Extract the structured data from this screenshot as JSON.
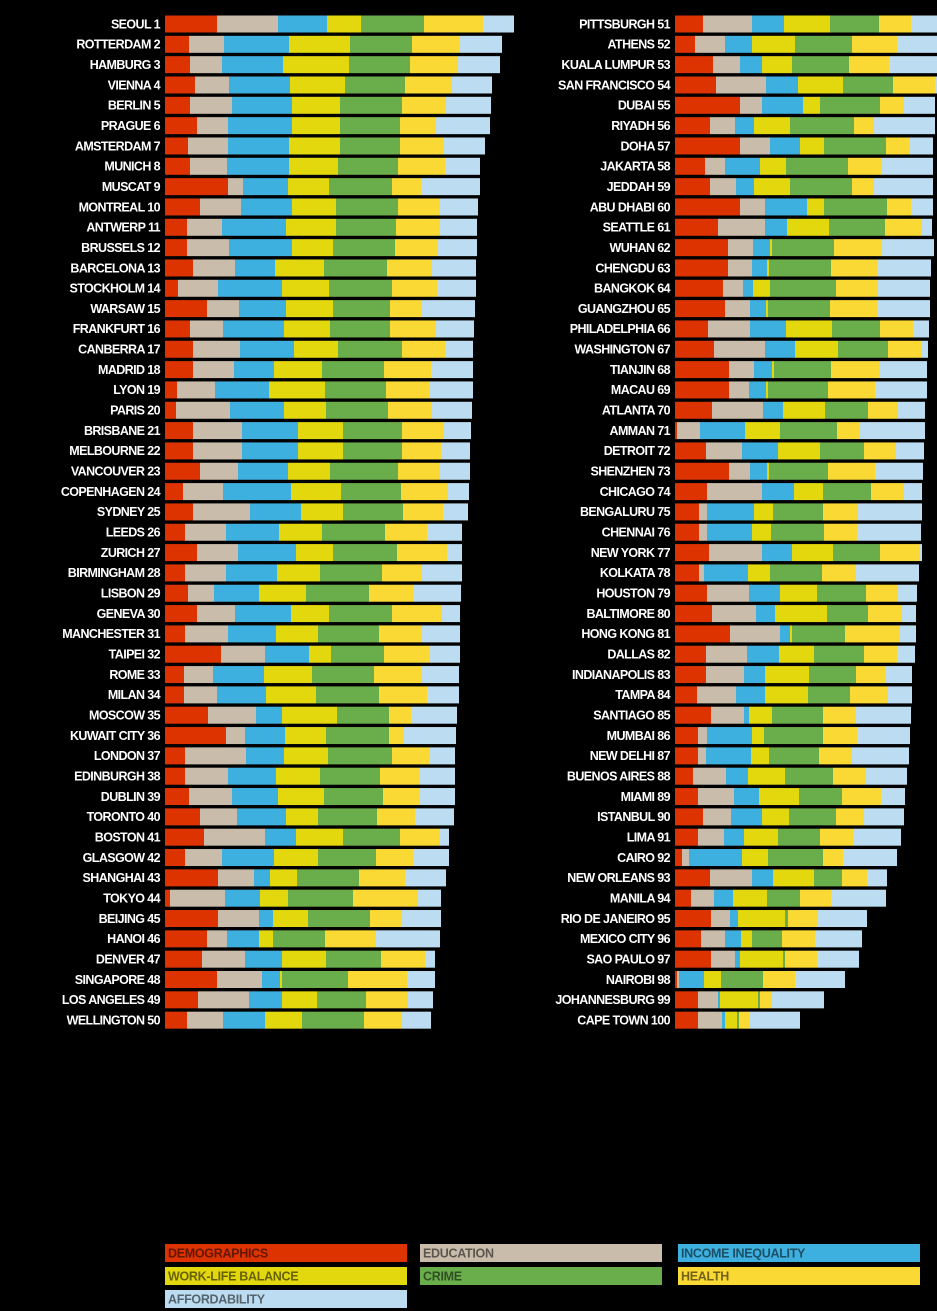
{
  "chart_data": {
    "type": "stacked_hbar",
    "categories": [
      "SEOUL 1",
      "ROTTERDAM 2",
      "HAMBURG 3",
      "VIENNA 4",
      "BERLIN 5",
      "PRAGUE 6",
      "AMSTERDAM 7",
      "MUNICH 8",
      "MUSCAT 9",
      "MONTREAL 10",
      "ANTWERP 11",
      "BRUSSELS 12",
      "BARCELONA 13",
      "STOCKHOLM 14",
      "WARSAW 15",
      "FRANKFURT 16",
      "CANBERRA 17",
      "MADRID 18",
      "LYON 19",
      "PARIS 20",
      "BRISBANE 21",
      "MELBOURNE 22",
      "VANCOUVER 23",
      "COPENHAGEN 24",
      "SYDNEY 25",
      "LEEDS 26",
      "ZURICH 27",
      "BIRMINGHAM 28",
      "LISBON 29",
      "GENEVA 30",
      "MANCHESTER 31",
      "TAIPEI 32",
      "ROME 33",
      "MILAN 34",
      "MOSCOW 35",
      "KUWAIT CITY 36",
      "LONDON 37",
      "EDINBURGH 38",
      "DUBLIN 39",
      "TORONTO 40",
      "BOSTON 41",
      "GLASGOW 42",
      "SHANGHAI 43",
      "TOKYO 44",
      "BEIJING 45",
      "HANOI 46",
      "DENVER 47",
      "SINGAPORE 48",
      "LOS ANGELES 49",
      "WELLINGTON 50",
      "PITTSBURGH 51",
      "ATHENS 52",
      "KUALA LUMPUR 53",
      "SAN FRANCISCO 54",
      "DUBAI 55",
      "RIYADH 56",
      "DOHA 57",
      "JAKARTA 58",
      "JEDDAH 59",
      "ABU DHABI 60",
      "SEATTLE 61",
      "WUHAN 62",
      "CHENGDU 63",
      "BANGKOK 64",
      "GUANGZHOU 65",
      "PHILADELPHIA 66",
      "WASHINGTON 67",
      "TIANJIN 68",
      "MACAU 69",
      "ATLANTA 70",
      "AMMAN 71",
      "DETROIT 72",
      "SHENZHEN 73",
      "CHICAGO 74",
      "BENGALURU 75",
      "CHENNAI 76",
      "NEW YORK 77",
      "KOLKATA 78",
      "HOUSTON 79",
      "BALTIMORE 80",
      "HONG KONG 81",
      "DALLAS 82",
      "INDIANAPOLIS 83",
      "TAMPA 84",
      "SANTIAGO 85",
      "MUMBAI 86",
      "NEW DELHI 87",
      "BUENOS AIRES 88",
      "MIAMI 89",
      "ISTANBUL 90",
      "LIMA 91",
      "CAIRO 92",
      "NEW ORLEANS 93",
      "MANILA 94",
      "RIO DE JANEIRO 95",
      "MEXICO CITY 96",
      "SAO PAULO 97",
      "NAIROBI 98",
      "JOHANNESBURG 99",
      "CAPE TOWN 100"
    ],
    "series": [
      {
        "name": "DEMOGRAPHICS",
        "color": "#dd3300",
        "values": [
          52,
          24,
          25,
          30,
          25,
          32,
          23,
          25,
          63,
          35,
          22,
          22,
          28,
          13,
          42,
          25,
          28,
          28,
          12,
          11,
          28,
          28,
          35,
          18,
          28,
          20,
          32,
          20,
          23,
          32,
          20,
          56,
          19,
          19,
          43,
          61,
          20,
          20,
          24,
          35,
          39,
          20,
          53,
          5,
          53,
          42,
          37,
          52,
          33,
          22,
          28,
          20,
          38,
          41,
          65,
          35,
          65,
          30,
          35,
          65,
          43,
          53,
          53,
          48,
          50,
          33,
          39,
          54,
          54,
          37,
          2,
          31,
          54,
          32,
          24,
          24,
          34,
          24,
          32,
          37,
          55,
          31,
          31,
          22,
          36,
          23,
          23,
          18,
          23,
          28,
          23,
          7,
          35,
          16,
          36,
          26,
          36,
          2,
          23,
          23
        ]
      },
      {
        "name": "EDUCATION",
        "color": "#c9bcaa",
        "values": [
          61,
          35,
          32,
          34,
          42,
          31,
          40,
          37,
          15,
          41,
          35,
          42,
          42,
          40,
          32,
          33,
          47,
          41,
          38,
          54,
          49,
          49,
          38,
          40,
          57,
          41,
          41,
          41,
          26,
          38,
          43,
          44,
          29,
          33,
          48,
          19,
          61,
          43,
          43,
          37,
          61,
          37,
          36,
          55,
          41,
          20,
          43,
          45,
          51,
          36,
          49,
          30,
          27,
          50,
          22,
          25,
          30,
          20,
          26,
          25,
          47,
          25,
          24,
          20,
          25,
          42,
          51,
          25,
          20,
          51,
          23,
          36,
          21,
          55,
          8,
          8,
          53,
          5,
          42,
          44,
          50,
          41,
          38,
          39,
          33,
          9,
          8,
          33,
          36,
          28,
          26,
          7,
          42,
          23,
          19,
          24,
          24,
          2,
          20,
          24
        ]
      },
      {
        "name": "INCOME INEQUALITY",
        "color": "#3eb0e0",
        "values": [
          49,
          65,
          61,
          61,
          60,
          64,
          61,
          62,
          45,
          51,
          64,
          63,
          40,
          64,
          47,
          61,
          54,
          40,
          54,
          54,
          56,
          56,
          50,
          68,
          51,
          53,
          58,
          51,
          45,
          56,
          48,
          44,
          51,
          49,
          26,
          40,
          38,
          48,
          46,
          49,
          31,
          52,
          16,
          35,
          14,
          32,
          37,
          18,
          33,
          42,
          32,
          27,
          22,
          32,
          41,
          19,
          30,
          35,
          18,
          42,
          22,
          17,
          15,
          10,
          16,
          36,
          30,
          18,
          17,
          20,
          45,
          36,
          17,
          32,
          47,
          45,
          30,
          44,
          31,
          19,
          10,
          32,
          21,
          29,
          5,
          45,
          45,
          22,
          25,
          31,
          20,
          53,
          21,
          19,
          8,
          16,
          5,
          25,
          2,
          3
        ]
      },
      {
        "name": "WORK-LIFE BALANCE",
        "color": "#e3d70d",
        "values": [
          34,
          61,
          66,
          55,
          48,
          48,
          51,
          49,
          41,
          44,
          50,
          41,
          49,
          47,
          47,
          46,
          44,
          48,
          56,
          42,
          45,
          45,
          42,
          50,
          42,
          43,
          37,
          43,
          47,
          38,
          42,
          22,
          48,
          50,
          55,
          41,
          44,
          44,
          46,
          32,
          47,
          44,
          27,
          28,
          35,
          14,
          44,
          2,
          35,
          37,
          46,
          43,
          30,
          45,
          17,
          36,
          24,
          26,
          36,
          17,
          42,
          2,
          2,
          17,
          2,
          46,
          43,
          2,
          2,
          42,
          35,
          42,
          2,
          29,
          19,
          19,
          41,
          22,
          37,
          52,
          2,
          35,
          44,
          43,
          23,
          12,
          18,
          37,
          40,
          27,
          34,
          26,
          41,
          34,
          47,
          11,
          43,
          17,
          38,
          12
        ]
      },
      {
        "name": "CRIME",
        "color": "#6aae4b",
        "values": [
          63,
          62,
          61,
          60,
          62,
          60,
          60,
          60,
          63,
          62,
          60,
          62,
          63,
          63,
          57,
          60,
          64,
          62,
          61,
          62,
          59,
          59,
          68,
          60,
          60,
          63,
          64,
          62,
          63,
          63,
          61,
          53,
          62,
          63,
          52,
          63,
          64,
          60,
          59,
          59,
          57,
          58,
          62,
          65,
          62,
          52,
          55,
          66,
          49,
          62,
          49,
          57,
          57,
          50,
          60,
          64,
          62,
          62,
          62,
          63,
          56,
          62,
          62,
          66,
          62,
          48,
          50,
          57,
          60,
          43,
          57,
          44,
          59,
          48,
          50,
          53,
          47,
          52,
          49,
          41,
          53,
          50,
          47,
          42,
          51,
          59,
          50,
          48,
          43,
          47,
          42,
          55,
          28,
          33,
          3,
          30,
          2,
          42,
          2,
          2
        ]
      },
      {
        "name": "HEALTH",
        "color": "#fbd934",
        "values": [
          59,
          48,
          48,
          47,
          44,
          36,
          44,
          47,
          29,
          42,
          44,
          43,
          45,
          45,
          32,
          46,
          43,
          47,
          44,
          44,
          42,
          39,
          42,
          47,
          40,
          42,
          50,
          40,
          44,
          50,
          43,
          46,
          48,
          48,
          22,
          15,
          38,
          40,
          37,
          38,
          40,
          37,
          46,
          65,
          32,
          51,
          44,
          59,
          42,
          38,
          32,
          45,
          40,
          42,
          24,
          20,
          24,
          34,
          22,
          24,
          37,
          48,
          46,
          42,
          47,
          33,
          34,
          49,
          47,
          30,
          23,
          32,
          47,
          33,
          35,
          33,
          40,
          34,
          32,
          34,
          55,
          33,
          30,
          38,
          33,
          34,
          33,
          33,
          39,
          28,
          33,
          20,
          25,
          31,
          30,
          33,
          32,
          32,
          12,
          11
        ]
      },
      {
        "name": "AFFORDABILITY",
        "color": "#bcdcf1",
        "values": [
          31,
          42,
          42,
          40,
          45,
          54,
          41,
          35,
          59,
          38,
          37,
          39,
          44,
          39,
          53,
          38,
          28,
          42,
          43,
          40,
          27,
          29,
          30,
          21,
          25,
          35,
          15,
          40,
          48,
          18,
          38,
          30,
          37,
          32,
          46,
          52,
          25,
          35,
          35,
          39,
          9,
          36,
          41,
          23,
          39,
          64,
          10,
          28,
          25,
          29,
          26,
          40,
          48,
          2,
          31,
          61,
          23,
          51,
          59,
          22,
          10,
          52,
          54,
          52,
          53,
          16,
          6,
          47,
          52,
          27,
          65,
          28,
          48,
          18,
          64,
          64,
          2,
          63,
          19,
          14,
          16,
          18,
          26,
          24,
          55,
          53,
          57,
          41,
          24,
          40,
          48,
          54,
          20,
          55,
          49,
          47,
          42,
          50,
          52,
          50
        ]
      }
    ],
    "xlim": [
      0,
      360
    ]
  }
}
